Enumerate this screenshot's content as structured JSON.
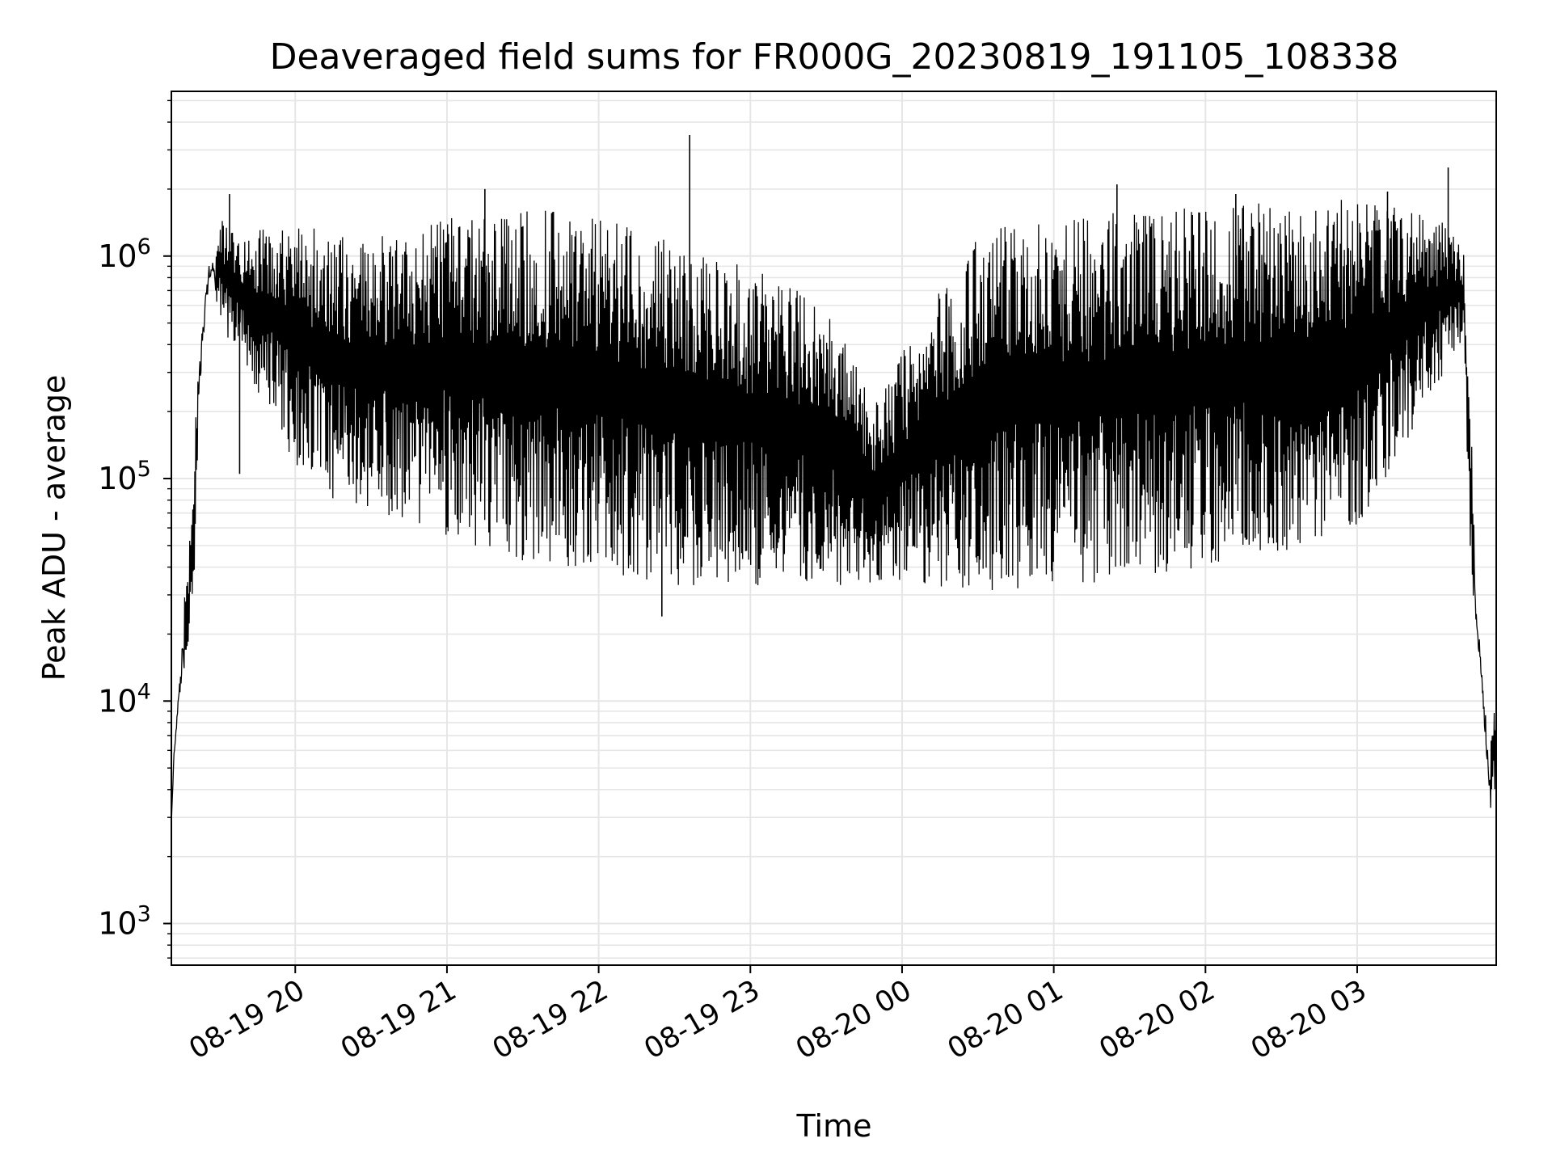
{
  "chart_data": {
    "type": "line",
    "title": "Deaveraged field sums for FR000G_20230819_191105_108338",
    "xlabel": "Time",
    "ylabel": "Peak ADU - average",
    "y_scale": "log",
    "ylim": [
      650,
      5500000
    ],
    "xlim": [
      "2023-08-19 19:11",
      "2023-08-20 03:55"
    ],
    "x_ticks": [
      {
        "t": "2023-08-19 20:00",
        "label": "08-19 20"
      },
      {
        "t": "2023-08-19 21:00",
        "label": "08-19 21"
      },
      {
        "t": "2023-08-19 22:00",
        "label": "08-19 22"
      },
      {
        "t": "2023-08-19 23:00",
        "label": "08-19 23"
      },
      {
        "t": "2023-08-20 00:00",
        "label": "08-20 00"
      },
      {
        "t": "2023-08-20 01:00",
        "label": "08-20 01"
      },
      {
        "t": "2023-08-20 02:00",
        "label": "08-20 02"
      },
      {
        "t": "2023-08-20 03:00",
        "label": "08-20 03"
      }
    ],
    "y_ticks": [
      {
        "value": 1000,
        "base": "10",
        "exp": "3"
      },
      {
        "value": 10000,
        "base": "10",
        "exp": "4"
      },
      {
        "value": 100000,
        "base": "10",
        "exp": "5"
      },
      {
        "value": 1000000,
        "base": "10",
        "exp": "6"
      }
    ],
    "grid": true,
    "line_color": "#000000",
    "grid_color": "#e6e6e6",
    "series": [
      {
        "envelope": [
          {
            "t": "2023-08-19 19:11",
            "low": 2800,
            "high": 2800
          },
          {
            "t": "2023-08-19 19:12",
            "low": 5200,
            "high": 6000
          },
          {
            "t": "2023-08-19 19:14",
            "low": 9000,
            "high": 12000
          },
          {
            "t": "2023-08-19 19:16",
            "low": 12000,
            "high": 28000
          },
          {
            "t": "2023-08-19 19:18",
            "low": 17000,
            "high": 46000
          },
          {
            "t": "2023-08-19 19:20",
            "low": 30000,
            "high": 140000
          },
          {
            "t": "2023-08-19 19:22",
            "low": 190000,
            "high": 350000
          },
          {
            "t": "2023-08-19 19:24",
            "low": 400000,
            "high": 700000
          },
          {
            "t": "2023-08-19 19:26",
            "low": 700000,
            "high": 1000000
          },
          {
            "t": "2023-08-19 19:30",
            "low": 500000,
            "high": 1500000
          },
          {
            "t": "2023-08-19 19:40",
            "low": 300000,
            "high": 1200000
          },
          {
            "t": "2023-08-19 19:50",
            "low": 200000,
            "high": 1400000
          },
          {
            "t": "2023-08-19 20:00",
            "low": 110000,
            "high": 1400000
          },
          {
            "t": "2023-08-19 20:15",
            "low": 80000,
            "high": 1300000
          },
          {
            "t": "2023-08-19 20:30",
            "low": 70000,
            "high": 1200000
          },
          {
            "t": "2023-08-19 20:45",
            "low": 65000,
            "high": 1300000
          },
          {
            "t": "2023-08-19 21:00",
            "low": 55000,
            "high": 1600000
          },
          {
            "t": "2023-08-19 21:20",
            "low": 45000,
            "high": 1600000
          },
          {
            "t": "2023-08-19 21:40",
            "low": 40000,
            "high": 1600000
          },
          {
            "t": "2023-08-19 22:00",
            "low": 38000,
            "high": 1500000
          },
          {
            "t": "2023-08-19 22:30",
            "low": 33000,
            "high": 1200000
          },
          {
            "t": "2023-08-19 23:00",
            "low": 33000,
            "high": 900000
          },
          {
            "t": "2023-08-19 23:30",
            "low": 33000,
            "high": 600000
          },
          {
            "t": "2023-08-19 23:50",
            "low": 33000,
            "high": 220000
          },
          {
            "t": "2023-08-20 00:10",
            "low": 32000,
            "high": 600000
          },
          {
            "t": "2023-08-20 00:30",
            "low": 31000,
            "high": 1300000
          },
          {
            "t": "2023-08-20 01:00",
            "low": 33000,
            "high": 1500000
          },
          {
            "t": "2023-08-20 01:30",
            "low": 35000,
            "high": 1600000
          },
          {
            "t": "2023-08-20 02:00",
            "low": 40000,
            "high": 1700000
          },
          {
            "t": "2023-08-20 02:30",
            "low": 45000,
            "high": 1800000
          },
          {
            "t": "2023-08-20 03:00",
            "low": 60000,
            "high": 1800000
          },
          {
            "t": "2023-08-20 03:20",
            "low": 150000,
            "high": 1600000
          },
          {
            "t": "2023-08-20 03:35",
            "low": 300000,
            "high": 1400000
          },
          {
            "t": "2023-08-20 03:42",
            "low": 400000,
            "high": 1100000
          },
          {
            "t": "2023-08-20 03:45",
            "low": 40000,
            "high": 200000
          },
          {
            "t": "2023-08-20 03:47",
            "low": 20000,
            "high": 28000
          },
          {
            "t": "2023-08-20 03:49",
            "low": 11000,
            "high": 18000
          },
          {
            "t": "2023-08-20 03:51",
            "low": 5000,
            "high": 9000
          },
          {
            "t": "2023-08-20 03:52",
            "low": 2900,
            "high": 6000
          },
          {
            "t": "2023-08-20 03:55",
            "low": 4000,
            "high": 12000
          }
        ],
        "spikes": [
          {
            "t": "2023-08-19 22:36",
            "value": 3500000
          },
          {
            "t": "2023-08-20 03:36",
            "value": 2500000
          },
          {
            "t": "2023-08-20 01:25",
            "value": 2100000
          },
          {
            "t": "2023-08-19 21:15",
            "value": 2000000
          },
          {
            "t": "2023-08-19 19:34",
            "value": 1900000
          },
          {
            "t": "2023-08-20 02:12",
            "value": 1900000
          },
          {
            "t": "2023-08-20 03:12",
            "value": 1950000
          },
          {
            "t": "2023-08-19 19:38",
            "value": 105000
          },
          {
            "t": "2023-08-19 22:25",
            "value": 24000
          }
        ]
      }
    ]
  }
}
